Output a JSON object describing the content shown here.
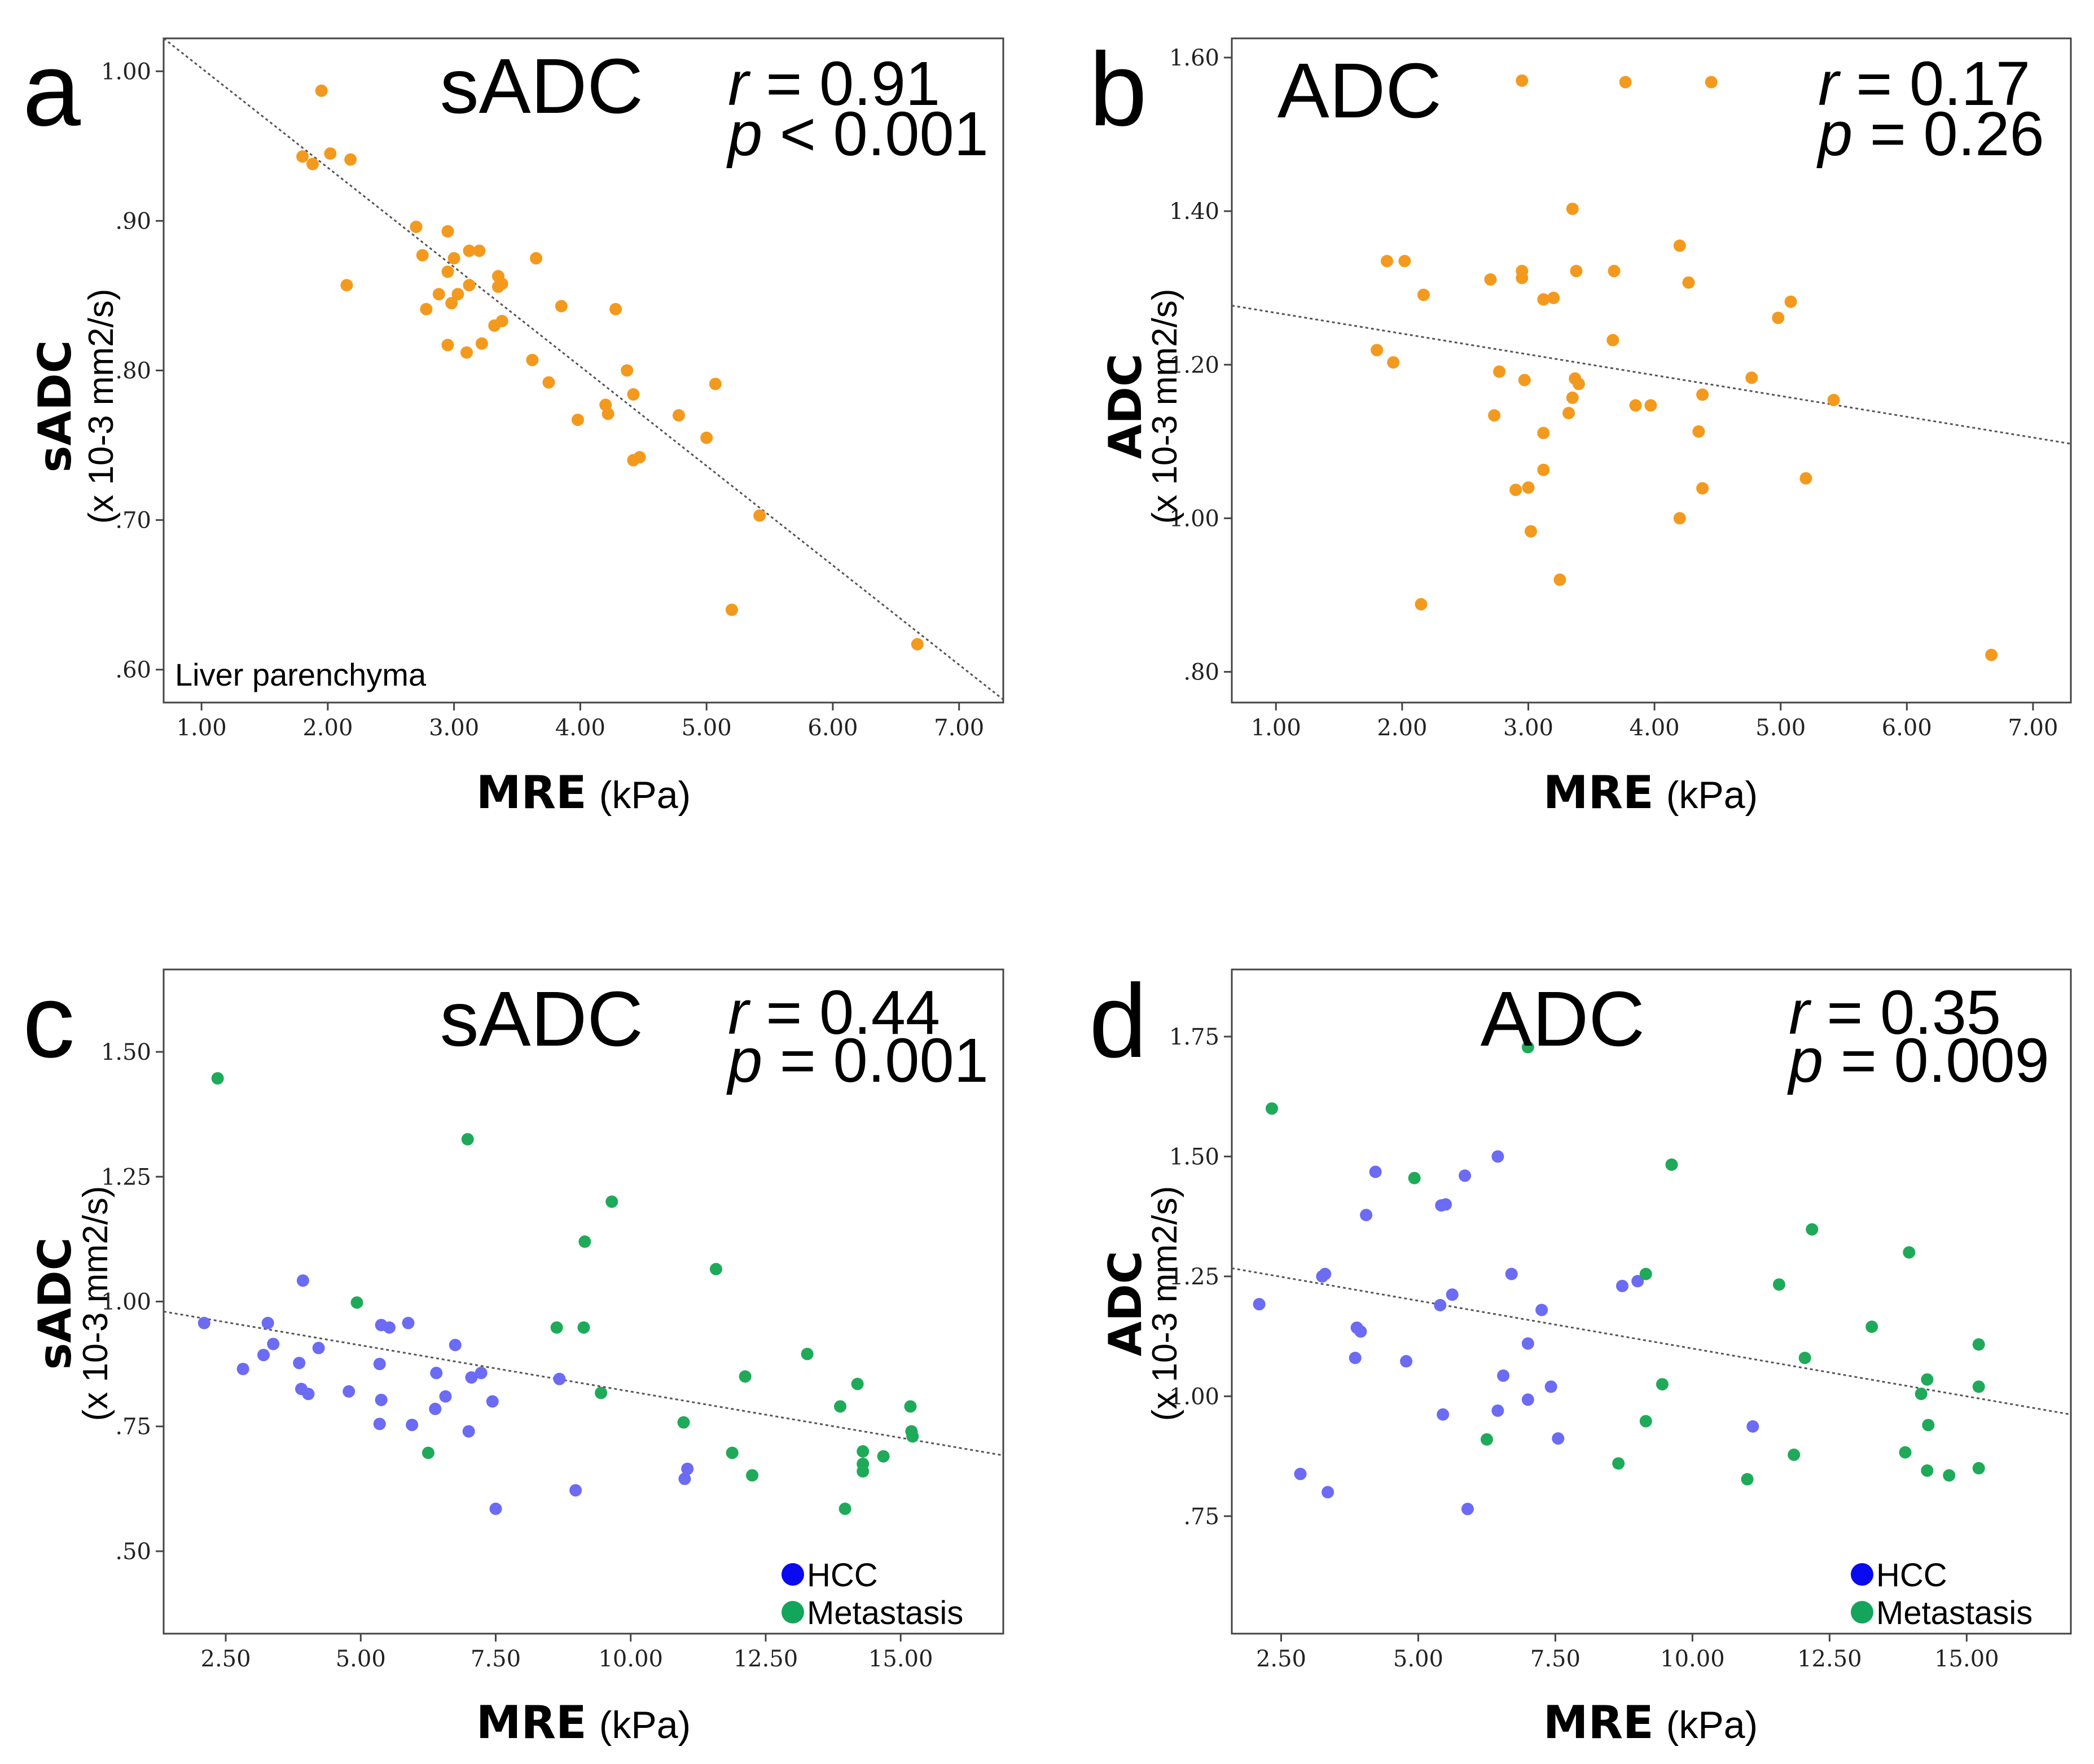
{
  "colors": {
    "orange": "#F39A1E",
    "hcc": "#6B6BF4",
    "metastasis": "#1FAA5A",
    "legend_hcc": "#0A0AF0",
    "legend_metastasis": "#13A55A",
    "fit_line": "#555555",
    "frame": "#444444"
  },
  "chart_data": [
    {
      "id": "a",
      "panel_letter": "a",
      "type": "scatter",
      "title": "sADC",
      "stat_r": {
        "symbol": "r",
        "text": " = 0.91"
      },
      "stat_p": {
        "symbol": "p",
        "text": " < 0.001"
      },
      "xlabel": "MRE",
      "xlabel_unit": "(kPa)",
      "ylabel": "sADC",
      "ylabel_unit": "(x 10-3 mm2/s)",
      "annotation": "Liver parenchyma",
      "xlim": [
        0.7,
        7.35
      ],
      "ylim": [
        0.578,
        1.022
      ],
      "x_ticks": [
        1,
        2,
        3,
        4,
        5,
        6,
        7
      ],
      "x_tick_labels": [
        "1.00",
        "2.00",
        "3.00",
        "4.00",
        "5.00",
        "6.00",
        "7.00"
      ],
      "y_ticks": [
        0.6,
        0.7,
        0.8,
        0.9,
        1.0
      ],
      "y_tick_labels": [
        ".60",
        ".70",
        ".80",
        ".90",
        "1.00"
      ],
      "fit_line": [
        [
          0.7,
          1.022
        ],
        [
          7.35,
          0.58
        ]
      ],
      "series": [
        {
          "name": "Liver parenchyma",
          "color": "#F39A1E",
          "points": [
            [
              1.95,
              0.987
            ],
            [
              1.8,
              0.943
            ],
            [
              2.02,
              0.945
            ],
            [
              1.88,
              0.938
            ],
            [
              2.18,
              0.941
            ],
            [
              2.15,
              0.857
            ],
            [
              2.7,
              0.896
            ],
            [
              2.95,
              0.893
            ],
            [
              2.75,
              0.877
            ],
            [
              3.0,
              0.875
            ],
            [
              3.12,
              0.88
            ],
            [
              3.2,
              0.88
            ],
            [
              3.65,
              0.875
            ],
            [
              2.95,
              0.866
            ],
            [
              3.35,
              0.863
            ],
            [
              3.38,
              0.858
            ],
            [
              3.12,
              0.857
            ],
            [
              3.35,
              0.856
            ],
            [
              2.88,
              0.851
            ],
            [
              3.03,
              0.851
            ],
            [
              2.98,
              0.845
            ],
            [
              2.78,
              0.841
            ],
            [
              3.85,
              0.843
            ],
            [
              4.28,
              0.841
            ],
            [
              3.38,
              0.833
            ],
            [
              3.32,
              0.83
            ],
            [
              2.95,
              0.817
            ],
            [
              3.22,
              0.818
            ],
            [
              3.1,
              0.812
            ],
            [
              3.62,
              0.807
            ],
            [
              4.37,
              0.8
            ],
            [
              3.75,
              0.792
            ],
            [
              5.07,
              0.791
            ],
            [
              4.42,
              0.784
            ],
            [
              4.2,
              0.777
            ],
            [
              4.22,
              0.771
            ],
            [
              3.98,
              0.767
            ],
            [
              4.78,
              0.77
            ],
            [
              5.0,
              0.755
            ],
            [
              4.47,
              0.742
            ],
            [
              4.42,
              0.74
            ],
            [
              5.42,
              0.703
            ],
            [
              5.2,
              0.64
            ],
            [
              6.67,
              0.617
            ]
          ]
        }
      ]
    },
    {
      "id": "b",
      "panel_letter": "b",
      "type": "scatter",
      "title": "ADC",
      "stat_r": {
        "symbol": "r",
        "text": " = 0.17"
      },
      "stat_p": {
        "symbol": "p",
        "text": " = 0.26"
      },
      "xlabel": "MRE",
      "xlabel_unit": "(kPa)",
      "ylabel": "ADC",
      "ylabel_unit": "(x 10-3 mm2/s)",
      "annotation": "",
      "xlim": [
        0.65,
        7.3
      ],
      "ylim": [
        0.76,
        1.625
      ],
      "x_ticks": [
        1,
        2,
        3,
        4,
        5,
        6,
        7
      ],
      "x_tick_labels": [
        "1.00",
        "2.00",
        "3.00",
        "4.00",
        "5.00",
        "6.00",
        "7.00"
      ],
      "y_ticks": [
        0.8,
        1.0,
        1.2,
        1.4,
        1.6
      ],
      "y_tick_labels": [
        ".80",
        "1.00",
        "1.20",
        "1.40",
        "1.60"
      ],
      "fit_line": [
        [
          0.65,
          1.277
        ],
        [
          7.3,
          1.097
        ]
      ],
      "series": [
        {
          "name": "Liver parenchyma",
          "color": "#F39A1E",
          "points": [
            [
              2.95,
              1.57
            ],
            [
              3.77,
              1.568
            ],
            [
              4.45,
              1.568
            ],
            [
              3.35,
              1.403
            ],
            [
              1.88,
              1.335
            ],
            [
              2.02,
              1.335
            ],
            [
              2.95,
              1.322
            ],
            [
              3.38,
              1.322
            ],
            [
              3.68,
              1.322
            ],
            [
              4.2,
              1.355
            ],
            [
              2.7,
              1.311
            ],
            [
              2.95,
              1.313
            ],
            [
              4.27,
              1.307
            ],
            [
              3.12,
              1.285
            ],
            [
              3.2,
              1.287
            ],
            [
              2.17,
              1.291
            ],
            [
              5.08,
              1.282
            ],
            [
              4.98,
              1.261
            ],
            [
              3.67,
              1.232
            ],
            [
              1.8,
              1.219
            ],
            [
              1.93,
              1.203
            ],
            [
              2.77,
              1.191
            ],
            [
              2.97,
              1.18
            ],
            [
              3.37,
              1.182
            ],
            [
              3.4,
              1.175
            ],
            [
              4.77,
              1.183
            ],
            [
              3.35,
              1.157
            ],
            [
              4.38,
              1.161
            ],
            [
              5.42,
              1.154
            ],
            [
              3.85,
              1.147
            ],
            [
              3.97,
              1.147
            ],
            [
              2.73,
              1.134
            ],
            [
              3.32,
              1.137
            ],
            [
              3.12,
              1.111
            ],
            [
              4.35,
              1.113
            ],
            [
              3.12,
              1.063
            ],
            [
              5.2,
              1.052
            ],
            [
              2.9,
              1.037
            ],
            [
              3.0,
              1.04
            ],
            [
              4.38,
              1.039
            ],
            [
              4.2,
              1.0
            ],
            [
              3.02,
              0.983
            ],
            [
              3.25,
              0.92
            ],
            [
              2.15,
              0.888
            ],
            [
              6.67,
              0.822
            ]
          ]
        }
      ]
    },
    {
      "id": "c",
      "panel_letter": "c",
      "type": "scatter",
      "title": "sADC",
      "stat_r": {
        "symbol": "r",
        "text": " = 0.44"
      },
      "stat_p": {
        "symbol": "p",
        "text": " = 0.001"
      },
      "xlabel": "MRE",
      "xlabel_unit": "(kPa)",
      "ylabel": "sADC",
      "ylabel_unit": "(x 10-3 mm2/s)",
      "annotation": "",
      "legend": [
        {
          "name": "HCC",
          "color": "#0A0AF0"
        },
        {
          "name": "Metastasis",
          "color": "#13A55A"
        }
      ],
      "xlim": [
        1.35,
        16.9
      ],
      "ylim": [
        0.335,
        1.665
      ],
      "x_ticks": [
        2.5,
        5,
        7.5,
        10,
        12.5,
        15
      ],
      "x_tick_labels": [
        "2.50",
        "5.00",
        "7.50",
        "10.00",
        "12.50",
        "15.00"
      ],
      "y_ticks": [
        0.5,
        0.75,
        1.0,
        1.25,
        1.5
      ],
      "y_tick_labels": [
        ".50",
        ".75",
        "1.00",
        "1.25",
        "1.50"
      ],
      "fit_line": [
        [
          1.35,
          0.98
        ],
        [
          16.9,
          0.692
        ]
      ],
      "series": [
        {
          "name": "HCC",
          "color": "#6B6BF4",
          "points": [
            [
              2.1,
              0.957
            ],
            [
              3.93,
              1.042
            ],
            [
              3.28,
              0.957
            ],
            [
              5.38,
              0.953
            ],
            [
              5.53,
              0.948
            ],
            [
              5.88,
              0.957
            ],
            [
              3.38,
              0.915
            ],
            [
              4.22,
              0.907
            ],
            [
              6.75,
              0.913
            ],
            [
              3.2,
              0.893
            ],
            [
              3.86,
              0.877
            ],
            [
              5.35,
              0.875
            ],
            [
              2.82,
              0.865
            ],
            [
              6.4,
              0.857
            ],
            [
              7.05,
              0.848
            ],
            [
              7.23,
              0.857
            ],
            [
              3.9,
              0.825
            ],
            [
              4.03,
              0.815
            ],
            [
              4.78,
              0.82
            ],
            [
              5.38,
              0.803
            ],
            [
              6.57,
              0.81
            ],
            [
              7.44,
              0.8
            ],
            [
              6.38,
              0.785
            ],
            [
              8.68,
              0.845
            ],
            [
              5.35,
              0.755
            ],
            [
              5.95,
              0.753
            ],
            [
              7.0,
              0.74
            ],
            [
              8.98,
              0.622
            ],
            [
              11.0,
              0.645
            ],
            [
              11.05,
              0.665
            ],
            [
              7.5,
              0.585
            ]
          ]
        },
        {
          "name": "Metastasis",
          "color": "#1FAA5A",
          "points": [
            [
              2.35,
              1.447
            ],
            [
              6.98,
              1.325
            ],
            [
              9.65,
              1.2
            ],
            [
              9.15,
              1.12
            ],
            [
              11.58,
              1.065
            ],
            [
              4.93,
              0.998
            ],
            [
              8.63,
              0.948
            ],
            [
              9.13,
              0.948
            ],
            [
              13.27,
              0.895
            ],
            [
              12.12,
              0.85
            ],
            [
              14.2,
              0.835
            ],
            [
              9.45,
              0.817
            ],
            [
              13.88,
              0.79
            ],
            [
              15.18,
              0.79
            ],
            [
              10.98,
              0.758
            ],
            [
              15.2,
              0.74
            ],
            [
              15.22,
              0.73
            ],
            [
              6.25,
              0.697
            ],
            [
              11.88,
              0.697
            ],
            [
              14.3,
              0.7
            ],
            [
              14.68,
              0.69
            ],
            [
              14.3,
              0.675
            ],
            [
              14.3,
              0.66
            ],
            [
              12.25,
              0.652
            ],
            [
              13.97,
              0.585
            ]
          ]
        }
      ]
    },
    {
      "id": "d",
      "panel_letter": "d",
      "type": "scatter",
      "title": "ADC",
      "stat_r": {
        "symbol": "r",
        "text": " = 0.35"
      },
      "stat_p": {
        "symbol": "p",
        "text": " = 0.009"
      },
      "xlabel": "MRE",
      "xlabel_unit": "(kPa)",
      "ylabel": "ADC",
      "ylabel_unit": "(x 10-3 mm2/s)",
      "annotation": "",
      "legend": [
        {
          "name": "HCC",
          "color": "#0A0AF0"
        },
        {
          "name": "Metastasis",
          "color": "#13A55A"
        }
      ],
      "xlim": [
        1.6,
        16.9
      ],
      "ylim": [
        0.505,
        1.89
      ],
      "x_ticks": [
        2.5,
        5,
        7.5,
        10,
        12.5,
        15
      ],
      "x_tick_labels": [
        "2.50",
        "5.00",
        "7.50",
        "10.00",
        "12.50",
        "15.00"
      ],
      "y_ticks": [
        0.75,
        1.0,
        1.25,
        1.5,
        1.75
      ],
      "y_tick_labels": [
        ".75",
        "1.00",
        "1.25",
        "1.50",
        "1.75"
      ],
      "fit_line": [
        [
          1.6,
          1.267
        ],
        [
          16.9,
          0.962
        ]
      ],
      "series": [
        {
          "name": "HCC",
          "color": "#6B6BF4",
          "points": [
            [
              2.1,
              1.192
            ],
            [
              2.85,
              0.838
            ],
            [
              3.35,
              0.8
            ],
            [
              3.25,
              1.25
            ],
            [
              3.3,
              1.255
            ],
            [
              3.88,
              1.143
            ],
            [
              3.95,
              1.135
            ],
            [
              3.85,
              1.08
            ],
            [
              4.05,
              1.378
            ],
            [
              4.22,
              1.468
            ],
            [
              4.78,
              1.073
            ],
            [
              5.42,
              1.398
            ],
            [
              5.5,
              1.4
            ],
            [
              5.85,
              1.46
            ],
            [
              6.45,
              1.5
            ],
            [
              5.4,
              1.19
            ],
            [
              5.62,
              1.212
            ],
            [
              6.7,
              1.255
            ],
            [
              7.25,
              1.18
            ],
            [
              5.45,
              0.962
            ],
            [
              6.45,
              0.97
            ],
            [
              6.55,
              1.043
            ],
            [
              7.0,
              1.11
            ],
            [
              7.0,
              0.993
            ],
            [
              7.42,
              1.02
            ],
            [
              7.55,
              0.912
            ],
            [
              5.9,
              0.765
            ],
            [
              8.72,
              1.23
            ],
            [
              9.0,
              1.24
            ],
            [
              11.1,
              0.937
            ]
          ]
        },
        {
          "name": "Metastasis",
          "color": "#1FAA5A",
          "points": [
            [
              7.0,
              1.728
            ],
            [
              2.33,
              1.6
            ],
            [
              4.93,
              1.455
            ],
            [
              9.62,
              1.483
            ],
            [
              12.18,
              1.348
            ],
            [
              13.95,
              1.3
            ],
            [
              9.15,
              1.255
            ],
            [
              11.58,
              1.233
            ],
            [
              13.27,
              1.145
            ],
            [
              15.22,
              1.108
            ],
            [
              12.05,
              1.08
            ],
            [
              14.28,
              1.035
            ],
            [
              9.45,
              1.025
            ],
            [
              15.22,
              1.02
            ],
            [
              14.17,
              1.005
            ],
            [
              14.3,
              0.94
            ],
            [
              9.15,
              0.948
            ],
            [
              6.25,
              0.91
            ],
            [
              13.88,
              0.883
            ],
            [
              11.85,
              0.878
            ],
            [
              8.65,
              0.86
            ],
            [
              14.28,
              0.845
            ],
            [
              14.68,
              0.835
            ],
            [
              15.22,
              0.85
            ],
            [
              11.0,
              0.827
            ]
          ]
        }
      ]
    }
  ]
}
